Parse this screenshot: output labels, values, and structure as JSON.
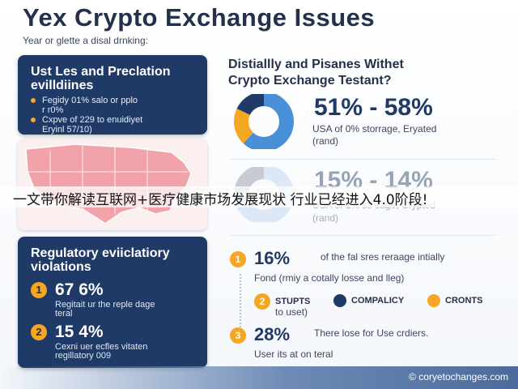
{
  "header": {
    "title": "Yex Crypto Exchange Issues",
    "subtitle": "Year or glette a disal drnking:"
  },
  "stats_card": {
    "title_line1": "Ust Les and Preclation",
    "title_line2": "evilldiines",
    "bullet1_line1": "Fegidy 01% salo or pplo",
    "bullet1_line2": "r r0%",
    "bullet2_line1": "Cxpve of 229 to enuidiyet",
    "bullet2_line2": "Eryinl 57/10)"
  },
  "regulatory_card": {
    "title_line1": "Regulatory eviiclatiory",
    "title_line2": "violations",
    "items": [
      {
        "badge": "1",
        "value": "67 6%",
        "desc1": "Regitait ur the reple dage",
        "desc2": "teral"
      },
      {
        "badge": "2",
        "value": "15 4%",
        "desc1": "Cexni uer ecfles vitaten",
        "desc2": "regillatory 009"
      }
    ]
  },
  "right_panel": {
    "title_line1": "Distiallly and Pisanes Withet",
    "title_line2": "Crypto Exchange Testant?",
    "block1": {
      "range": "51% - 58%",
      "desc1": "USA of 0% storrage, Eryated",
      "desc2": "(rand)"
    },
    "block2": {
      "range": "15% - 14%",
      "desc1": "USA of 1% sti eage, Crypted",
      "desc2": "(rand)"
    }
  },
  "list": [
    {
      "badge": "1",
      "pct": "16%",
      "label": "of the fal sres reraage intially",
      "sub": "Fond (rmiy a cotally losse and lleg)"
    },
    {
      "badge": "3",
      "pct": "28%",
      "label": "There lose for Use crdiers.",
      "sub": "User its at on teral"
    }
  ],
  "legend": {
    "badge": "2",
    "items": [
      {
        "label": "STUPTS",
        "color": "#f5a623"
      },
      {
        "label": "COMPALICY",
        "color": "#1f3a66"
      },
      {
        "label": "CRONTS",
        "color": "#f5a623"
      }
    ],
    "sub": "to uset)"
  },
  "donut1": {
    "segments": [
      {
        "value": 62,
        "color": "#4a90d9"
      },
      {
        "value": 20,
        "color": "#f5a623"
      },
      {
        "value": 18,
        "color": "#1f3a66"
      }
    ]
  },
  "donut2": {
    "segments": [
      {
        "value": 75,
        "color": "#bcd3ee"
      },
      {
        "value": 25,
        "color": "#8a93a3"
      }
    ]
  },
  "overlay": {
    "text": "一文带你解读互联网+医疗健康市场发展现状 行业已经进入4.0阶段!"
  },
  "footer": {
    "text": "© coryetochanges.com"
  }
}
